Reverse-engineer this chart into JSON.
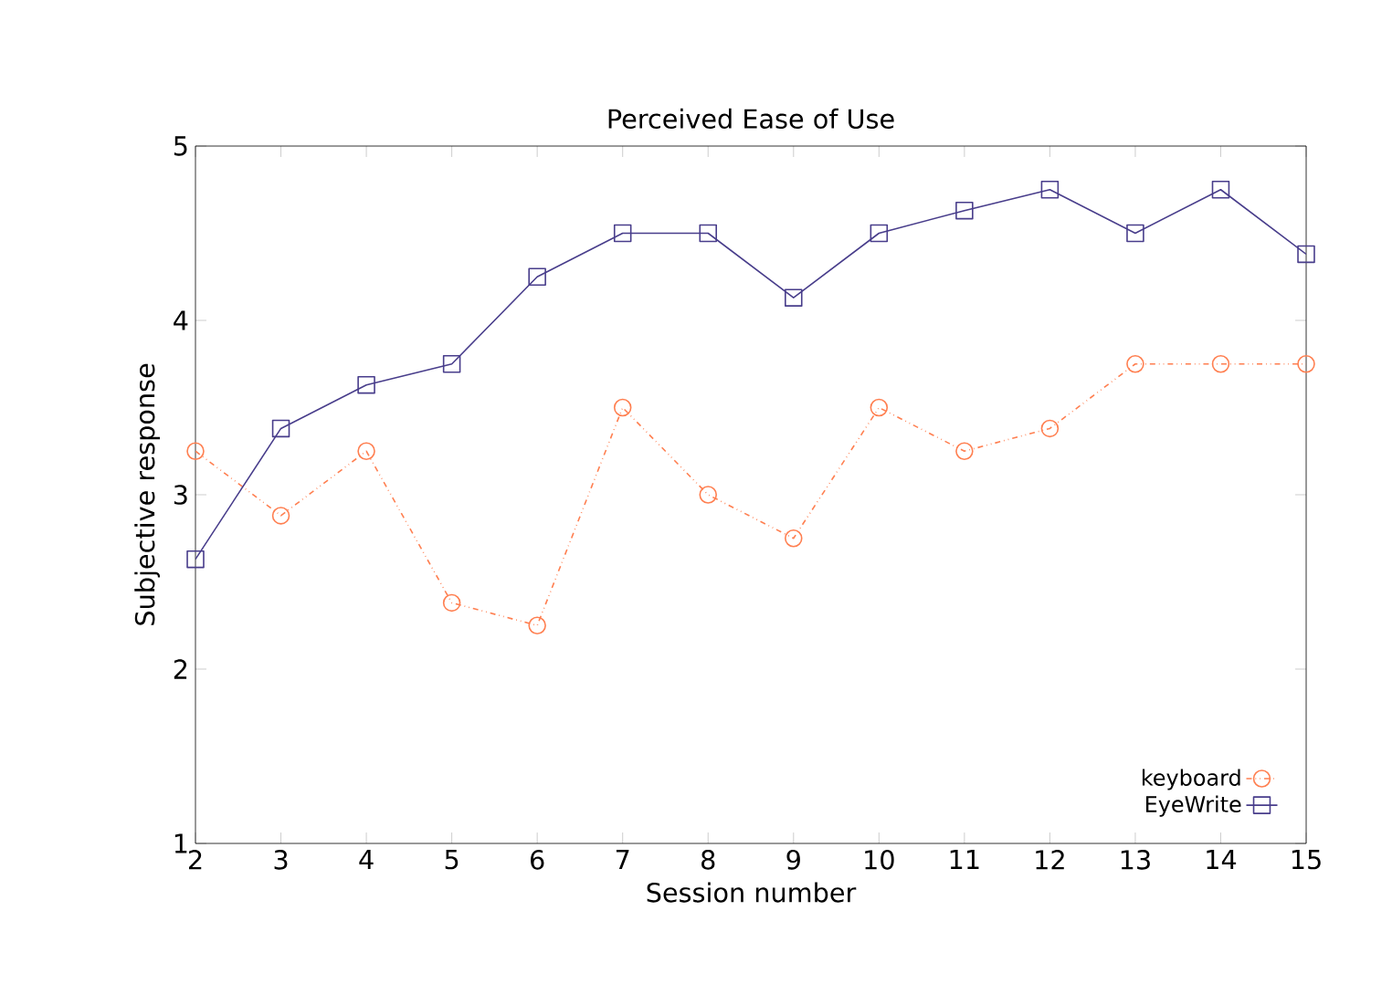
{
  "chart_data": {
    "type": "line",
    "title": "Perceived Ease of Use",
    "xlabel": "Session number",
    "ylabel": "Subjective response",
    "x": [
      2,
      3,
      4,
      5,
      6,
      7,
      8,
      9,
      10,
      11,
      12,
      13,
      14,
      15
    ],
    "series": [
      {
        "name": "keyboard",
        "color": "#ff7f50",
        "marker": "circle",
        "line_style": "dotted",
        "values": [
          3.25,
          2.88,
          3.25,
          2.38,
          2.25,
          3.5,
          3.0,
          2.75,
          3.5,
          3.25,
          3.38,
          3.75,
          3.75,
          3.75
        ]
      },
      {
        "name": "EyeWrite",
        "color": "#483d8b",
        "marker": "square",
        "line_style": "solid",
        "values": [
          2.63,
          3.38,
          3.63,
          3.75,
          4.25,
          4.5,
          4.5,
          4.13,
          4.5,
          4.63,
          4.75,
          4.5,
          4.75,
          4.38
        ]
      }
    ],
    "xlim": [
      2,
      15
    ],
    "ylim": [
      1,
      5
    ],
    "xticks": [
      2,
      3,
      4,
      5,
      6,
      7,
      8,
      9,
      10,
      11,
      12,
      13,
      14,
      15
    ],
    "yticks": [
      1,
      2,
      3,
      4,
      5
    ],
    "grid": false,
    "legend": "bottom right"
  }
}
